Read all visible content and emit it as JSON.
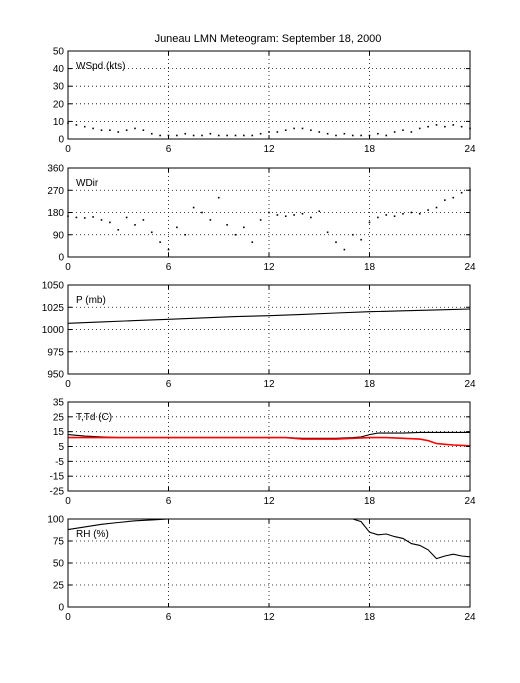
{
  "title": "Juneau LMN Meteogram: September 18, 2000",
  "chart_data": [
    {
      "type": "scatter",
      "label": "WSpd (kts)",
      "xlim": [
        0,
        24
      ],
      "ylim": [
        0,
        50
      ],
      "xticks": [
        0,
        6,
        12,
        18,
        24
      ],
      "yticks": [
        0,
        10,
        20,
        30,
        40,
        50
      ],
      "grid": true,
      "series": [
        {
          "color": "#000000",
          "x": [
            0,
            0.5,
            1,
            1.5,
            2,
            2.5,
            3,
            3.5,
            4,
            4.5,
            5,
            5.5,
            6,
            6.5,
            7,
            7.5,
            8,
            8.5,
            9,
            9.5,
            10,
            10.5,
            11,
            11.5,
            12,
            12.5,
            13,
            13.5,
            14,
            14.5,
            15,
            15.5,
            16,
            16.5,
            17,
            17.5,
            18,
            18.5,
            19,
            19.5,
            20,
            20.5,
            21,
            21.5,
            22,
            22.5,
            23,
            23.5,
            24
          ],
          "y": [
            9,
            8,
            7,
            6,
            5,
            5,
            4,
            5,
            6,
            5,
            3,
            2,
            2,
            2,
            3,
            2,
            2,
            3,
            2,
            2,
            2,
            2,
            2,
            3,
            4,
            4,
            5,
            6,
            6,
            5,
            4,
            3,
            2,
            3,
            2,
            2,
            2,
            3,
            2,
            4,
            5,
            4,
            6,
            7,
            8,
            7,
            8,
            7,
            6
          ]
        }
      ]
    },
    {
      "type": "scatter",
      "label": "WDir",
      "xlim": [
        0,
        24
      ],
      "ylim": [
        0,
        360
      ],
      "xticks": [
        0,
        6,
        12,
        18,
        24
      ],
      "yticks": [
        0,
        90,
        180,
        270,
        360
      ],
      "grid": true,
      "series": [
        {
          "color": "#000000",
          "x": [
            0,
            0.5,
            1,
            1.5,
            2,
            2.5,
            3,
            3.5,
            4,
            4.5,
            5,
            5.5,
            6,
            6.5,
            7,
            7.5,
            8,
            8.5,
            9,
            9.5,
            10,
            10.5,
            11,
            11.5,
            12,
            12.5,
            13,
            13.5,
            14,
            14.5,
            15,
            15.5,
            16,
            16.5,
            17,
            17.5,
            18,
            18.5,
            19,
            19.5,
            20,
            20.5,
            21,
            21.5,
            22,
            22.5,
            23,
            23.5,
            24
          ],
          "y": [
            165,
            160,
            158,
            162,
            150,
            140,
            110,
            160,
            130,
            150,
            100,
            60,
            30,
            120,
            90,
            200,
            180,
            150,
            240,
            130,
            90,
            120,
            60,
            150,
            180,
            170,
            165,
            170,
            175,
            160,
            185,
            100,
            60,
            30,
            90,
            70,
            140,
            160,
            170,
            165,
            175,
            180,
            175,
            190,
            200,
            230,
            240,
            260,
            270
          ]
        }
      ]
    },
    {
      "type": "line",
      "label": "P (mb)",
      "xlim": [
        0,
        24
      ],
      "ylim": [
        950,
        1050
      ],
      "xticks": [
        0,
        6,
        12,
        18,
        24
      ],
      "yticks": [
        950,
        975,
        1000,
        1025,
        1050
      ],
      "grid": true,
      "series": [
        {
          "color": "#000000",
          "x": [
            0,
            2,
            4,
            6,
            8,
            10,
            12,
            14,
            16,
            18,
            20,
            22,
            24
          ],
          "y": [
            1007,
            1008.5,
            1010,
            1011.5,
            1013,
            1014.5,
            1015.5,
            1017,
            1018.5,
            1020,
            1021,
            1022,
            1023
          ]
        }
      ]
    },
    {
      "type": "line",
      "label": "T,Td (C)",
      "xlim": [
        0,
        24
      ],
      "ylim": [
        -25,
        35
      ],
      "xticks": [
        0,
        6,
        12,
        18,
        24
      ],
      "yticks": [
        -25,
        -15,
        -5,
        5,
        15,
        25,
        35
      ],
      "grid": true,
      "series": [
        {
          "color": "#000000",
          "x": [
            0,
            1,
            2,
            3,
            4,
            5,
            6,
            7,
            8,
            9,
            10,
            11,
            12,
            13,
            14,
            15,
            16,
            17,
            17.5,
            18,
            18.5,
            19,
            20,
            21,
            22,
            23,
            24
          ],
          "y": [
            13,
            12,
            11.5,
            11,
            11,
            11,
            11,
            11,
            11,
            11,
            11,
            11,
            11,
            11,
            10.5,
            10.5,
            10.5,
            11,
            11.5,
            13,
            14,
            14,
            14,
            14.5,
            14.5,
            14.5,
            14.5
          ]
        },
        {
          "color": "#ff0000",
          "x": [
            0,
            1,
            2,
            3,
            4,
            5,
            6,
            7,
            8,
            9,
            10,
            11,
            12,
            13,
            14,
            15,
            16,
            17,
            18,
            19,
            20,
            21,
            21.5,
            22,
            22.5,
            23,
            24
          ],
          "y": [
            11,
            11,
            11,
            11,
            11,
            11,
            11,
            11,
            11,
            11,
            11,
            11,
            11,
            11,
            10,
            10,
            10,
            10.5,
            11,
            11,
            10.5,
            10,
            9,
            7,
            6.5,
            6,
            5.5
          ]
        }
      ]
    },
    {
      "type": "line",
      "label": "RH (%)",
      "xlim": [
        0,
        24
      ],
      "ylim": [
        0,
        100
      ],
      "xticks": [
        0,
        6,
        12,
        18,
        24
      ],
      "yticks": [
        0,
        25,
        50,
        75,
        100
      ],
      "grid": true,
      "series": [
        {
          "color": "#000000",
          "x": [
            0,
            1,
            2,
            3,
            4,
            5,
            6,
            7,
            8,
            9,
            10,
            11,
            12,
            13,
            14,
            15,
            16,
            17,
            17.5,
            18,
            18.5,
            19,
            19.5,
            20,
            20.5,
            21,
            21.5,
            22,
            22.5,
            23,
            23.5,
            24
          ],
          "y": [
            88,
            91,
            94,
            96,
            98,
            99,
            100,
            100,
            100,
            100,
            100,
            100,
            100,
            100,
            100,
            100,
            100,
            100,
            97,
            85,
            82,
            83,
            80,
            78,
            72,
            70,
            65,
            55,
            58,
            60,
            58,
            57
          ]
        }
      ]
    }
  ]
}
